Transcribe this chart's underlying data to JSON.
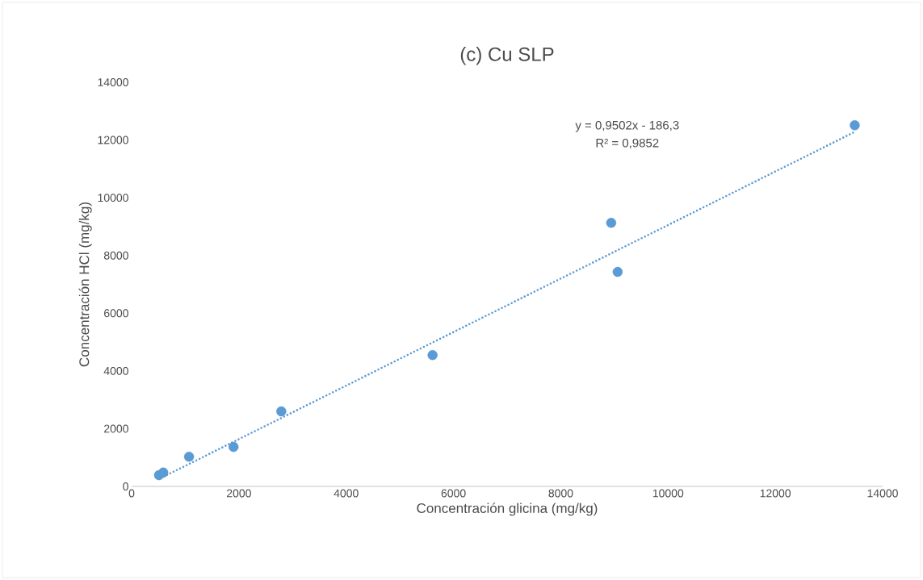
{
  "chart_data": {
    "type": "scatter",
    "title": "(c) Cu SLP",
    "xlabel": "Concentración glicina (mg/kg)",
    "ylabel": "Concentración HCl (mg/kg)",
    "xlim": [
      0,
      14000
    ],
    "ylim": [
      0,
      14000
    ],
    "xticks": [
      0,
      2000,
      4000,
      6000,
      8000,
      10000,
      12000,
      14000
    ],
    "yticks": [
      0,
      2000,
      4000,
      6000,
      8000,
      10000,
      12000,
      14000
    ],
    "annotations": [
      "y = 0,9502x - 186,3",
      "R² = 0,9852"
    ],
    "series": [
      {
        "color": "#5b9bd5",
        "marker": "circle",
        "x": [
          510,
          590,
          1070,
          1900,
          2790,
          5610,
          8940,
          9060,
          13480
        ],
        "values": [
          390,
          480,
          1030,
          1370,
          2600,
          4550,
          9130,
          7430,
          12510
        ]
      },
      {
        "type": "line",
        "color": "#5b9bd5",
        "line_style": "dotted",
        "x": [
          600,
          13490
        ],
        "values": [
          340,
          12290
        ]
      }
    ]
  }
}
